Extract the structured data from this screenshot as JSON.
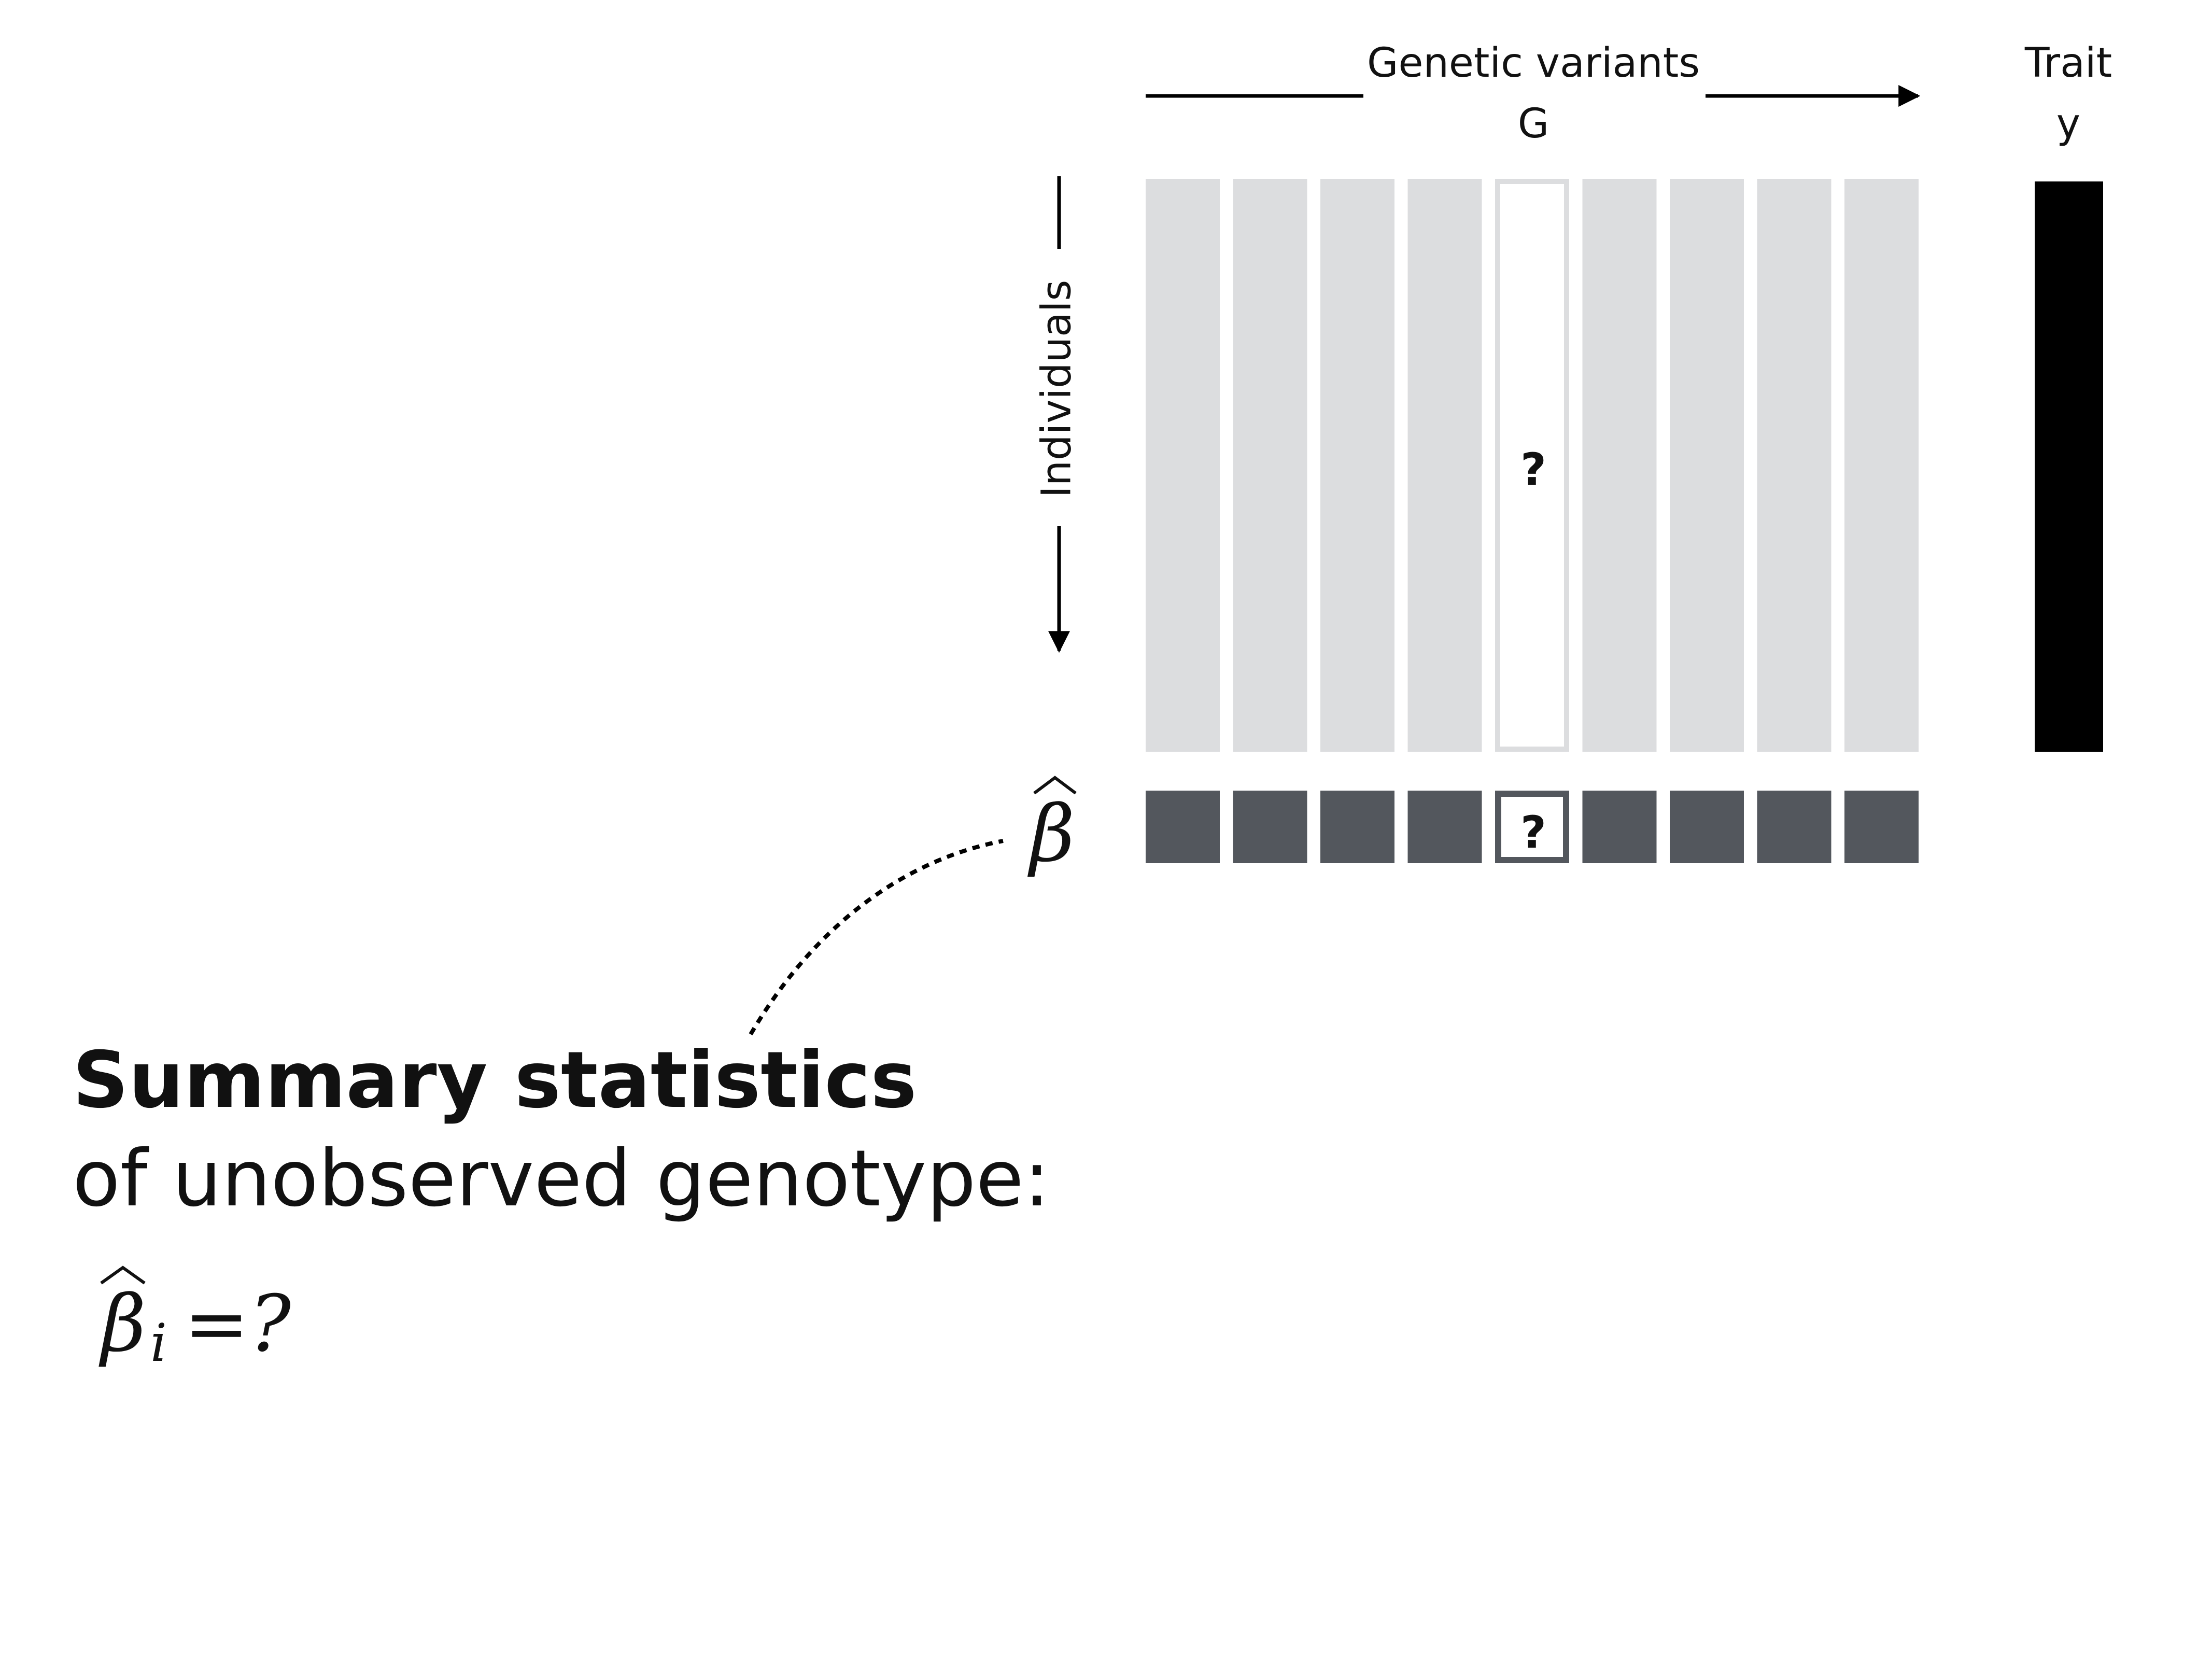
{
  "header": {
    "variants_label": "Genetic variants",
    "variants_symbol": "G",
    "trait_label": "Trait",
    "trait_symbol": "y"
  },
  "axis": {
    "individuals_label": "Individuals"
  },
  "matrix": {
    "column_count": 9,
    "unknown_column_index": 4,
    "unknown_marker": "?"
  },
  "beta_row": {
    "symbol": "β",
    "unknown_marker": "?"
  },
  "caption": {
    "title": "Summary statistics",
    "subtitle": "of unobserved genotype:",
    "equation_symbol": "β",
    "equation_subscript": "i",
    "equation_rhs": "=?"
  },
  "colors": {
    "genotype_column": "#dcdddf",
    "unknown_column_border": "#dcdddf",
    "beta_cell": "#53575d",
    "trait_bar": "#000000",
    "line": "#000000"
  }
}
